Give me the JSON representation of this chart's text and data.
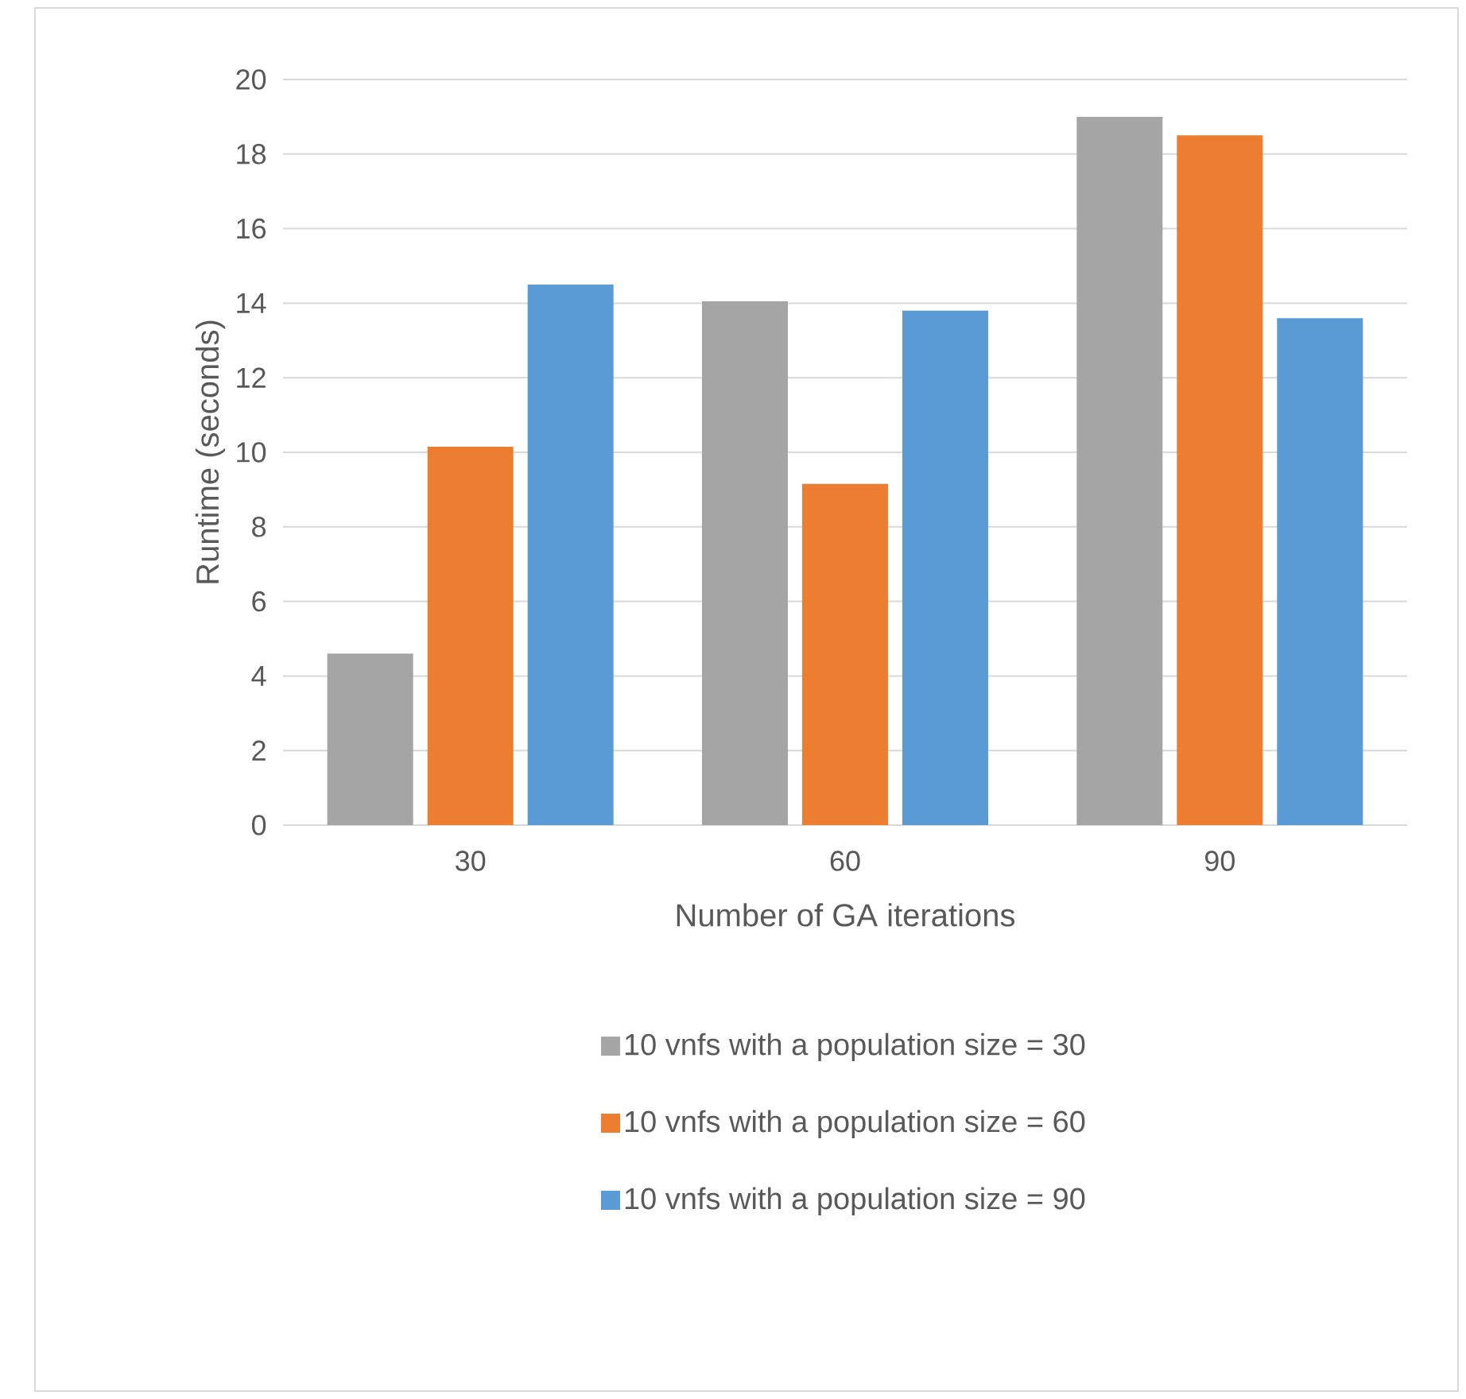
{
  "chart_data": {
    "type": "bar",
    "xlabel": "Number of GA iterations",
    "ylabel": "Runtime (seconds)",
    "categories": [
      "30",
      "60",
      "90"
    ],
    "series": [
      {
        "name": "10 vnfs with a population size = 30",
        "color": "#a5a5a5",
        "values": [
          4.6,
          14.05,
          19.0
        ]
      },
      {
        "name": "10 vnfs with a population size = 60",
        "color": "#ed7d31",
        "values": [
          10.15,
          9.15,
          18.5
        ]
      },
      {
        "name": "10 vnfs with a population size = 90",
        "color": "#5b9bd5",
        "values": [
          14.5,
          13.8,
          13.6
        ]
      }
    ],
    "ylim": [
      0,
      20
    ],
    "yticks": [
      0,
      2,
      4,
      6,
      8,
      10,
      12,
      14,
      16,
      18,
      20
    ],
    "grid": "y",
    "legend": "bottom"
  }
}
